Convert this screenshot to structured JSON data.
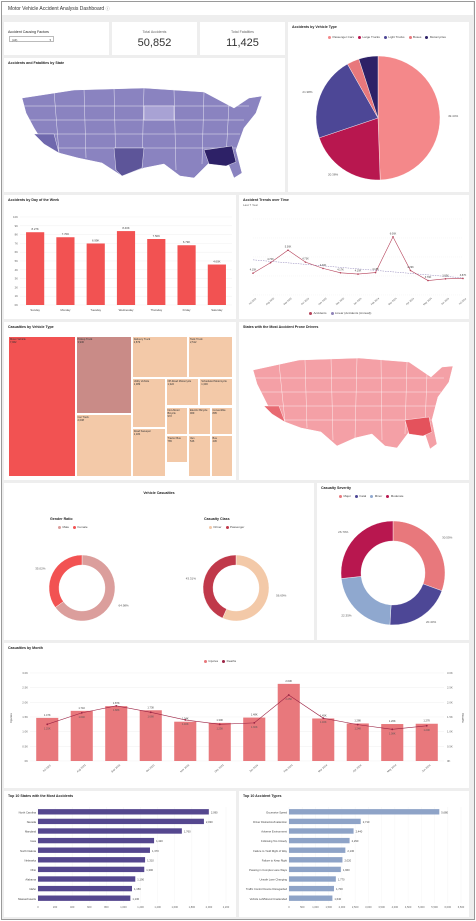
{
  "page": {
    "title": "Motor Vehicle Accident Analysis Dashboard",
    "filter_label": "Accident Causing Factors",
    "filter_value": "(All)",
    "kpi_total_accidents_label": "Total Accidents",
    "kpi_total_accidents": "50,852",
    "kpi_total_fatalities_label": "Total Fatalities",
    "kpi_total_fatalities": "11,425"
  },
  "panels": {
    "map1_title": "Accidents and Fatalities by State",
    "vehicle_type_title": "Accidents by Vehicle Type",
    "day_title": "Accidents by Day of the Week",
    "trend_title": "Accident Trends over Time",
    "trend_subtitle": "Last 7 Year",
    "casualty_vtype_title": "Casualties by Vehicle Type",
    "map2_title": "States with the Most Accident Prone Drivers",
    "vehicle_casualties_title": "Vehicle Casualties",
    "gender_title": "Gender Ratio",
    "class_title": "Casualty Class",
    "severity_title": "Casualty Severity",
    "month_title": "Casualties by Month",
    "top_states_title": "Top 10 States with the Most Accidents",
    "top_types_title": "Top 10 Accident Types"
  },
  "colors": {
    "salmon": "#f4888a",
    "crimson": "#b8174f",
    "indigo": "#4d4796",
    "light_blue": "#8fa8cf",
    "navy": "#2d2167",
    "red_bar": "#f25252",
    "rose_bar": "#e8787c",
    "purple_bar": "#55478f",
    "steel_bar": "#8ea3c7",
    "peach": "#f3c9a8"
  },
  "chart_data": [
    {
      "id": "vehicle_type_pie",
      "type": "pie",
      "legend": [
        "Passenger Cars",
        "Large Trucks",
        "Light Trucks",
        "Buses",
        "Motorcycles"
      ],
      "colors": [
        "#f4888a",
        "#b8174f",
        "#4d4796",
        "#e8787c",
        "#2d2167"
      ],
      "values": [
        49.44,
        20.38,
        21.98,
        3.2,
        5.0
      ],
      "labels": [
        "49.44%",
        "20.38%",
        "21.98%",
        "",
        ""
      ]
    },
    {
      "id": "day_of_week",
      "type": "bar",
      "title": "Accidents by Day of the Week",
      "categories": [
        "Sunday",
        "Monday",
        "Tuesday",
        "Wednesday",
        "Thursday",
        "Friday",
        "Saturday"
      ],
      "values": [
        8.27,
        7.7,
        6.99,
        8.4,
        7.5,
        6.79,
        4.6
      ],
      "labels": [
        "8.27K",
        "7.70K",
        "6.99K",
        "8.40K",
        "7.50K",
        "6.79K",
        "4.60K"
      ],
      "ylim": [
        0,
        10
      ],
      "yticks": [
        "0K",
        "1K",
        "2K",
        "3K",
        "4K",
        "5K",
        "6K",
        "7K",
        "8K",
        "9K",
        "10K"
      ]
    },
    {
      "id": "trends_over_time",
      "type": "line",
      "title": "Accident Trends over Time",
      "x": [
        "Jul 2023",
        "Aug 2023",
        "Sep 2023",
        "Oct 2023",
        "Nov 2023",
        "Dec 2023",
        "Jan 2024",
        "Feb 2024",
        "Mar 2024",
        "Apr 2024",
        "May 2024",
        "Jun 2024",
        "Jul 2024"
      ],
      "values": [
        4.15,
        4.7,
        5.36,
        4.73,
        4.4,
        4.17,
        4.1,
        4.18,
        6.06,
        4.29,
        3.76,
        3.85,
        3.87
      ],
      "labels": [
        "4.15K",
        "4.70K",
        "5.36K",
        "4.73K",
        "4.40K",
        "4.17K",
        "4.10K",
        "4.18K",
        "6.06K",
        "4.29K",
        "3.76K",
        "3.85K",
        "3.87K"
      ],
      "trend": [
        4.85,
        3.9
      ],
      "series": [
        {
          "name": "Accidents"
        },
        {
          "name": "Linear (Accidents (Annual))"
        }
      ],
      "ylim": [
        3,
        7
      ]
    },
    {
      "id": "casualty_vehicle_treemap",
      "type": "treemap",
      "items": [
        {
          "name": "Motor Vehicle",
          "value": "7,962"
        },
        {
          "name": "Pickup Truck",
          "value": "3,930"
        },
        {
          "name": "Delivery Truck",
          "value": "2,879"
        },
        {
          "name": "Tank Truck",
          "value": "2,512"
        },
        {
          "name": "Car Truck",
          "value": "2,008"
        },
        {
          "name": "Utility Vehicle",
          "value": "1,389"
        },
        {
          "name": "Off-Road Motorcycle",
          "value": "1,322"
        },
        {
          "name": "Scheduled Motorcycle",
          "value": "1,303"
        },
        {
          "name": "Road Sweeper",
          "value": "1,184"
        },
        {
          "name": "Non-Motor Bicycle",
          "value": "972"
        },
        {
          "name": "Electric Bicycle",
          "value": "969"
        },
        {
          "name": "Convertible",
          "value": "895"
        },
        {
          "name": "Tractor Bus",
          "value": "765"
        },
        {
          "name": "Van",
          "value": "546"
        },
        {
          "name": "Bus",
          "value": "436"
        }
      ]
    },
    {
      "id": "gender_ratio",
      "type": "pie",
      "legend": [
        "Male",
        "Female"
      ],
      "colors": [
        "#db9e9c",
        "#f25252"
      ],
      "values": [
        64.98,
        35.02
      ],
      "labels": [
        "64.98%",
        "35.02%"
      ]
    },
    {
      "id": "casualty_class",
      "type": "pie",
      "legend": [
        "Driver",
        "Passenger"
      ],
      "colors": [
        "#f3c9a8",
        "#c0394a"
      ],
      "values": [
        56.69,
        43.31
      ],
      "labels": [
        "56.69%",
        "43.31%"
      ]
    },
    {
      "id": "casualty_severity",
      "type": "pie",
      "legend": [
        "Major",
        "Fatal",
        "Minor",
        "Moderate"
      ],
      "colors": [
        "#e8787c",
        "#4d4796",
        "#8fa8cf",
        "#b8174f"
      ],
      "values": [
        30.55,
        20.4,
        22.35,
        26.7
      ],
      "labels": [
        "30.55%",
        "20.40%",
        "22.35%",
        "26.70%"
      ]
    },
    {
      "id": "casualties_by_month",
      "type": "bar",
      "title": "Casualties by Month",
      "categories": [
        "Jul 2023",
        "Aug 2023",
        "Sep 2023",
        "Oct 2023",
        "Nov 2023",
        "Dec 2023",
        "Jan 2024",
        "Feb 2024",
        "Mar 2024",
        "Apr 2024",
        "May 2024",
        "Jun 2024"
      ],
      "series": [
        {
          "name": "Injuries",
          "values": [
            1.47,
            1.71,
            1.87,
            1.73,
            1.34,
            1.3,
            1.48,
            2.63,
            1.45,
            1.28,
            1.26,
            1.27
          ],
          "labels": [
            "1.47K",
            "1.71K",
            "1.87K",
            "1.73K",
            "1.34K",
            "1.30K",
            "1.48K",
            "2.63K",
            "1.45K",
            "1.28K",
            "1.26K",
            "1.27K"
          ]
        },
        {
          "name": "Deaths",
          "values": [
            1.25,
            1.64,
            1.88,
            1.66,
            1.4,
            1.25,
            1.3,
            2.25,
            1.46,
            1.24,
            1.08,
            1.2
          ],
          "labels": [
            "1.25K",
            "1.64K",
            "1.88K",
            "1.66K",
            "1.40K",
            "1.25K",
            "1.30K",
            "2.25K",
            "1.46K",
            "1.24K",
            "1.08K",
            "1.20K"
          ]
        }
      ],
      "yticks": [
        "0K",
        "0.5K",
        "1.0K",
        "1.5K",
        "2.0K",
        "2.5K",
        "3.0K"
      ],
      "ylim": [
        0,
        3
      ],
      "ylabel": "Injuries",
      "y2label": "Deaths"
    },
    {
      "id": "top_states",
      "type": "bar",
      "orientation": "horizontal",
      "title": "Top 10 States with the Most Accidents",
      "categories": [
        "North Carolina",
        "Nevada",
        "Maryland",
        "Iowa",
        "North Dakota",
        "Nebraska",
        "Ohio",
        "Alabama",
        "Idaho",
        "Massachusetts"
      ],
      "values": [
        2090,
        2030,
        1760,
        1420,
        1370,
        1310,
        1300,
        1190,
        1150,
        1130
      ],
      "labels": [
        "2,090",
        "2,030",
        "1,760",
        "1,420",
        "1,370",
        "1,310",
        "1,300",
        "1,190",
        "1,150",
        "1,130"
      ],
      "xticks": [
        "0",
        "200",
        "400",
        "600",
        "800",
        "1,000",
        "1,200",
        "1,400",
        "1,600",
        "1,800",
        "2,000",
        "2,200"
      ],
      "xlim": [
        0,
        2300
      ]
    },
    {
      "id": "top_types",
      "type": "bar",
      "orientation": "horizontal",
      "title": "Top 10 Accident Types",
      "categories": [
        "Excessive Speed",
        "Driver Distraction/Inattention",
        "Adverse Environment",
        "Following Too Closely",
        "Failure to Yield Right of Way",
        "Failure to Keep Right",
        "Passing in Complex Lane Ways",
        "Unsafe Lane Changing",
        "Traffic Control Device Disregarded",
        "Vehicle Left/Moved Unattended"
      ],
      "values": [
        5680,
        2710,
        2440,
        2290,
        2130,
        2020,
        1960,
        1770,
        1700,
        1640
      ],
      "labels": [
        "5,680",
        "2,710",
        "2,440",
        "2,290",
        "2,130",
        "2,020",
        "1,960",
        "1,770",
        "1,700",
        "1,640"
      ],
      "xticks": [
        "0",
        "500",
        "1,000",
        "1,500",
        "2,000",
        "2,500",
        "3,000",
        "3,500",
        "4,000",
        "4,500",
        "5,000",
        "5,500",
        "6,000",
        "6,500"
      ],
      "xlim": [
        0,
        6500
      ]
    }
  ]
}
